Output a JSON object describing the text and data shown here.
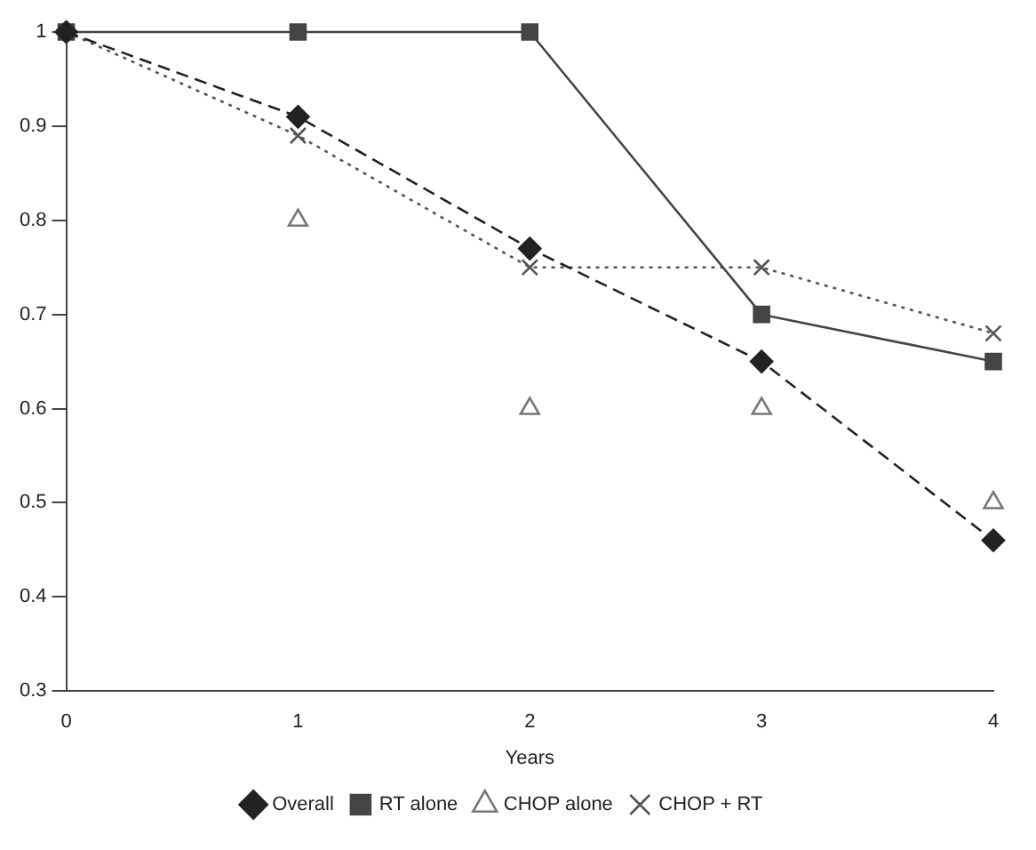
{
  "chart_data": {
    "type": "line",
    "xlabel": "Years",
    "x": [
      0,
      1,
      2,
      3,
      4
    ],
    "series": [
      {
        "name": "Overall",
        "color": "#222222",
        "values": [
          1,
          0.91,
          0.77,
          0.65,
          0.46
        ],
        "marker": "diamond",
        "line_style": "dashed"
      },
      {
        "name": "RT alone",
        "color": "#444444",
        "values": [
          1,
          1,
          1,
          0.7,
          0.65
        ],
        "marker": "square",
        "line_style": "solid"
      },
      {
        "name": "CHOP alone",
        "type": "scatter",
        "color": "#777777",
        "values": [
          null,
          0.8,
          0.6,
          0.6,
          0.5
        ],
        "marker": "triangle"
      },
      {
        "name": "CHOP + RT",
        "color": "#555555",
        "values": [
          1,
          0.89,
          0.75,
          0.75,
          0.68
        ],
        "marker": "cross",
        "line_style": "dotted"
      }
    ],
    "xlim": [
      0,
      4
    ],
    "xticks": [
      0,
      1,
      2,
      3,
      4
    ],
    "ylim": [
      0.3,
      1
    ],
    "yticks": [
      0.3,
      0.4,
      0.5,
      0.6,
      0.7,
      0.8,
      0.9,
      1
    ],
    "grid": false,
    "legend": "bottom"
  }
}
